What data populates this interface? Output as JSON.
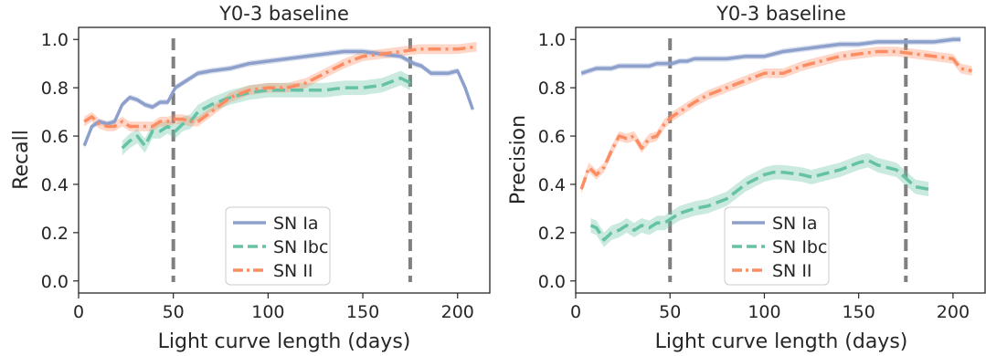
{
  "chart_data": [
    {
      "type": "line",
      "title": "Y0-3 baseline",
      "xlabel": "Light curve length (days)",
      "ylabel": "Recall",
      "xlim": [
        0,
        217
      ],
      "ylim": [
        -0.05,
        1.05
      ],
      "xticks": [
        0,
        50,
        100,
        150,
        200
      ],
      "yticks": [
        0.0,
        0.2,
        0.4,
        0.6,
        0.8,
        1.0
      ],
      "xtick_labels": [
        "0",
        "50",
        "100",
        "150",
        "200"
      ],
      "ytick_labels": [
        "0.0",
        "0.2",
        "0.4",
        "0.6",
        "0.8",
        "1.0"
      ],
      "vlines": [
        50,
        175
      ],
      "legend": "lower-center",
      "series": [
        {
          "name": "SN Ia",
          "color": "#8da0cb",
          "style": "solid",
          "x": [
            3,
            7,
            11,
            15,
            19,
            23,
            27,
            31,
            35,
            39,
            43,
            47,
            51,
            55,
            59,
            63,
            70,
            80,
            90,
            100,
            110,
            120,
            130,
            140,
            150,
            160,
            170,
            177,
            181,
            186,
            195,
            200,
            204,
            208
          ],
          "y": [
            0.56,
            0.64,
            0.66,
            0.65,
            0.66,
            0.73,
            0.76,
            0.75,
            0.73,
            0.72,
            0.74,
            0.74,
            0.8,
            0.82,
            0.84,
            0.86,
            0.87,
            0.88,
            0.9,
            0.91,
            0.92,
            0.93,
            0.94,
            0.95,
            0.95,
            0.94,
            0.93,
            0.9,
            0.89,
            0.86,
            0.86,
            0.87,
            0.8,
            0.71
          ],
          "band": 0.012
        },
        {
          "name": "SN Ibc",
          "color": "#66c2a5",
          "style": "dashed",
          "x": [
            23,
            27,
            31,
            35,
            39,
            43,
            47,
            51,
            55,
            59,
            63,
            70,
            80,
            90,
            100,
            110,
            120,
            130,
            140,
            150,
            160,
            170,
            175
          ],
          "y": [
            0.55,
            0.58,
            0.6,
            0.56,
            0.62,
            0.62,
            0.64,
            0.62,
            0.65,
            0.66,
            0.7,
            0.73,
            0.76,
            0.78,
            0.79,
            0.79,
            0.79,
            0.79,
            0.8,
            0.8,
            0.81,
            0.84,
            0.82
          ],
          "band": 0.03
        },
        {
          "name": "SN II",
          "color": "#fc8d62",
          "style": "dashdot",
          "x": [
            3,
            7,
            11,
            15,
            19,
            23,
            27,
            31,
            35,
            39,
            43,
            47,
            51,
            55,
            59,
            63,
            70,
            80,
            90,
            100,
            110,
            120,
            130,
            140,
            150,
            160,
            170,
            180,
            190,
            200,
            210
          ],
          "y": [
            0.66,
            0.68,
            0.65,
            0.64,
            0.64,
            0.66,
            0.64,
            0.64,
            0.64,
            0.64,
            0.66,
            0.66,
            0.67,
            0.67,
            0.66,
            0.66,
            0.7,
            0.76,
            0.79,
            0.8,
            0.8,
            0.82,
            0.86,
            0.9,
            0.93,
            0.94,
            0.95,
            0.96,
            0.96,
            0.96,
            0.97
          ],
          "band": 0.02
        }
      ]
    },
    {
      "type": "line",
      "title": "Y0-3 baseline",
      "xlabel": "Light curve length (days)",
      "ylabel": "Precision",
      "xlim": [
        0,
        217
      ],
      "ylim": [
        -0.05,
        1.05
      ],
      "xticks": [
        0,
        50,
        100,
        150,
        200
      ],
      "yticks": [
        0.0,
        0.2,
        0.4,
        0.6,
        0.8,
        1.0
      ],
      "xtick_labels": [
        "0",
        "50",
        "100",
        "150",
        "200"
      ],
      "ytick_labels": [
        "0.0",
        "0.2",
        "0.4",
        "0.6",
        "0.8",
        "1.0"
      ],
      "vlines": [
        50,
        175
      ],
      "legend": "lower-center",
      "series": [
        {
          "name": "SN Ia",
          "color": "#8da0cb",
          "style": "solid",
          "x": [
            3,
            7,
            11,
            15,
            19,
            23,
            27,
            31,
            35,
            39,
            43,
            47,
            51,
            55,
            59,
            63,
            70,
            80,
            90,
            100,
            110,
            120,
            130,
            140,
            150,
            160,
            170,
            180,
            190,
            200,
            204
          ],
          "y": [
            0.86,
            0.87,
            0.88,
            0.88,
            0.88,
            0.89,
            0.89,
            0.89,
            0.89,
            0.89,
            0.9,
            0.9,
            0.9,
            0.91,
            0.91,
            0.92,
            0.92,
            0.92,
            0.93,
            0.93,
            0.95,
            0.96,
            0.97,
            0.98,
            0.98,
            0.99,
            0.99,
            0.99,
            0.99,
            1.0,
            1.0
          ],
          "band": 0.012
        },
        {
          "name": "SN Ibc",
          "color": "#66c2a5",
          "style": "dashed",
          "x": [
            8,
            11,
            15,
            19,
            23,
            27,
            31,
            35,
            39,
            43,
            47,
            51,
            55,
            59,
            63,
            70,
            80,
            90,
            100,
            105,
            110,
            120,
            125,
            130,
            140,
            150,
            155,
            160,
            170,
            180,
            187
          ],
          "y": [
            0.23,
            0.22,
            0.17,
            0.2,
            0.21,
            0.23,
            0.21,
            0.23,
            0.22,
            0.24,
            0.24,
            0.26,
            0.28,
            0.29,
            0.3,
            0.31,
            0.34,
            0.4,
            0.44,
            0.45,
            0.45,
            0.44,
            0.43,
            0.44,
            0.46,
            0.49,
            0.5,
            0.48,
            0.46,
            0.39,
            0.38
          ],
          "band": 0.03
        },
        {
          "name": "SN II",
          "color": "#fc8d62",
          "style": "dashdot",
          "x": [
            3,
            7,
            11,
            15,
            19,
            23,
            27,
            31,
            35,
            39,
            43,
            47,
            51,
            55,
            59,
            63,
            70,
            80,
            90,
            100,
            110,
            120,
            130,
            140,
            150,
            160,
            170,
            180,
            190,
            200,
            204,
            210
          ],
          "y": [
            0.38,
            0.47,
            0.44,
            0.47,
            0.54,
            0.6,
            0.59,
            0.6,
            0.55,
            0.59,
            0.6,
            0.65,
            0.68,
            0.7,
            0.72,
            0.74,
            0.77,
            0.8,
            0.83,
            0.86,
            0.86,
            0.89,
            0.91,
            0.93,
            0.94,
            0.95,
            0.95,
            0.94,
            0.93,
            0.92,
            0.88,
            0.87
          ],
          "band": 0.02
        }
      ]
    }
  ]
}
